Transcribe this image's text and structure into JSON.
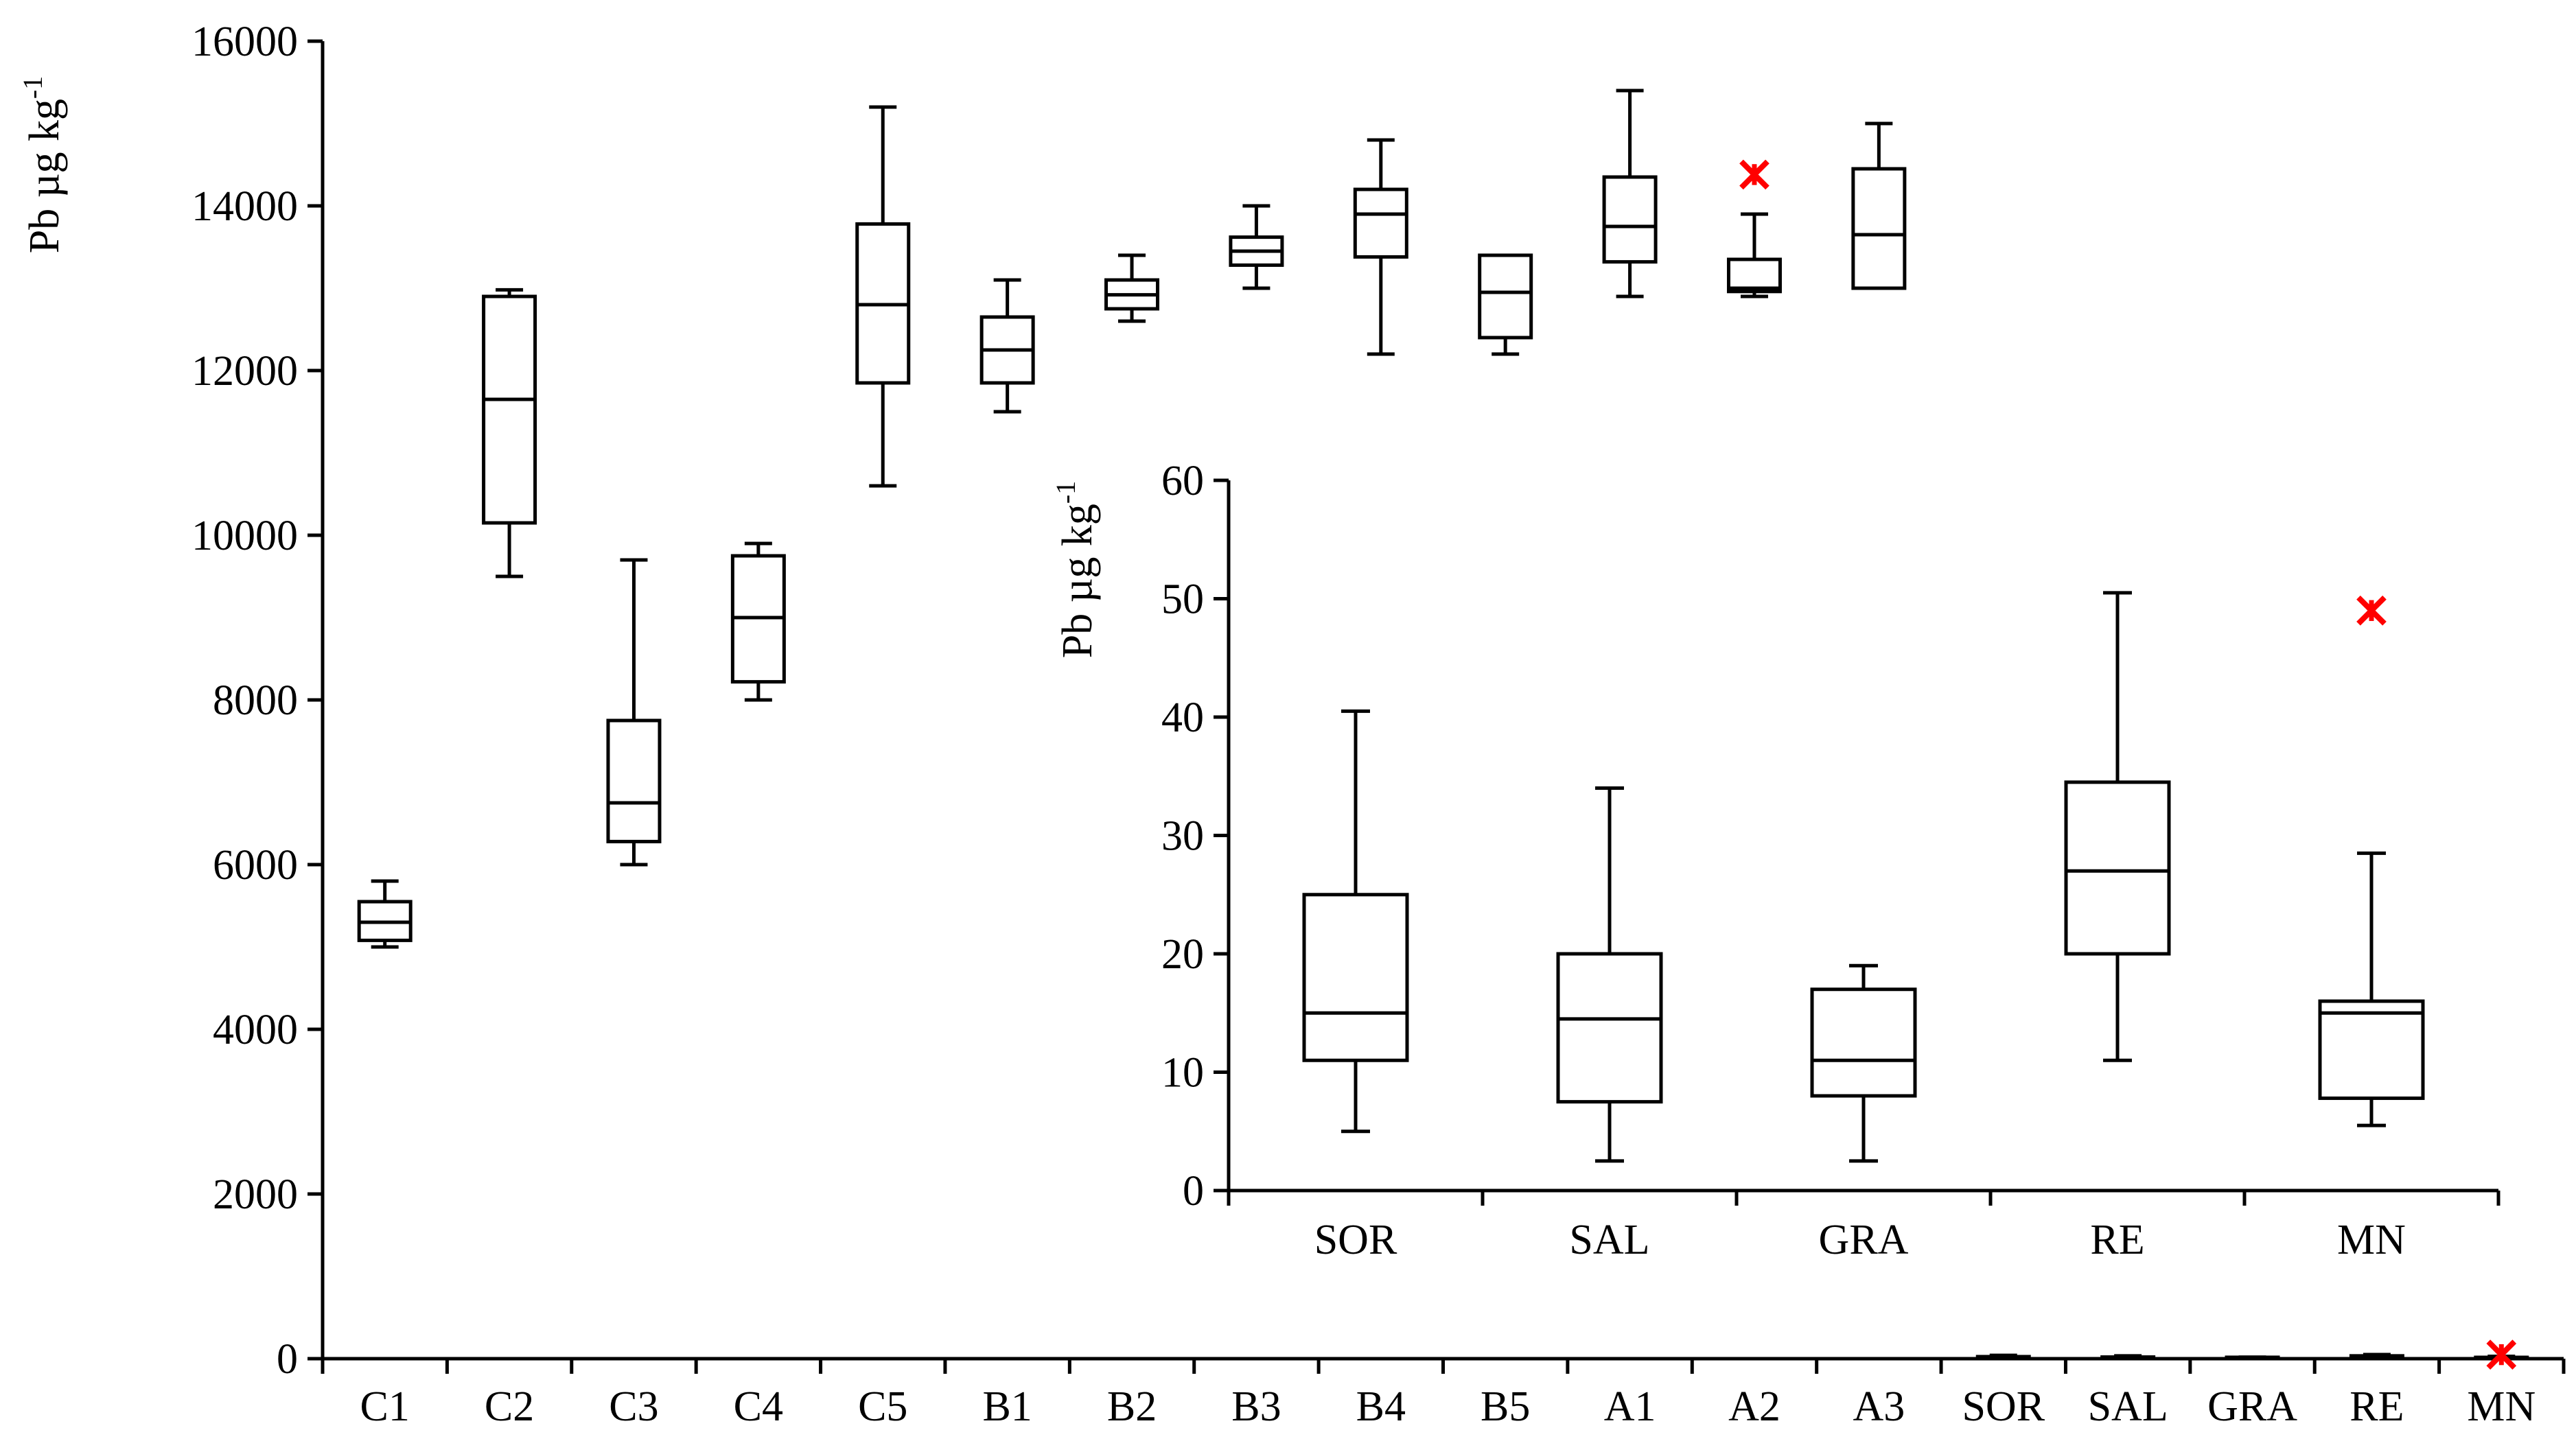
{
  "chart_data": [
    {
      "type": "box",
      "title": "",
      "ylabel": "Pb  µg kg",
      "ylabel_superscript": "-1",
      "xlabel": "",
      "ylim": [
        0,
        16000
      ],
      "yticks": [
        "0",
        "2000",
        "4000",
        "6000",
        "8000",
        "10000",
        "12000",
        "14000",
        "16000"
      ],
      "categories": [
        "C1",
        "C2",
        "C3",
        "C4",
        "C5",
        "B1",
        "B2",
        "B3",
        "B4",
        "B5",
        "A1",
        "A2",
        "A3",
        "SOR",
        "SAL",
        "GRA",
        "RE",
        "MN"
      ],
      "boxes": [
        {
          "category": "C1",
          "min": 5000,
          "q1": 5080,
          "median": 5300,
          "q3": 5550,
          "max": 5800
        },
        {
          "category": "C2",
          "min": 9500,
          "q1": 10150,
          "median": 11650,
          "q3": 12900,
          "max": 12980
        },
        {
          "category": "C3",
          "min": 6000,
          "q1": 6280,
          "median": 6750,
          "q3": 7750,
          "max": 9700
        },
        {
          "category": "C4",
          "min": 8000,
          "q1": 8220,
          "median": 9000,
          "q3": 9750,
          "max": 9900
        },
        {
          "category": "C5",
          "min": 10600,
          "q1": 11850,
          "median": 12800,
          "q3": 13780,
          "max": 15200
        },
        {
          "category": "B1",
          "min": 11500,
          "q1": 11850,
          "median": 12250,
          "q3": 12650,
          "max": 13100
        },
        {
          "category": "B2",
          "min": 12600,
          "q1": 12750,
          "median": 12920,
          "q3": 13100,
          "max": 13400
        },
        {
          "category": "B3",
          "min": 13000,
          "q1": 13280,
          "median": 13450,
          "q3": 13620,
          "max": 14000
        },
        {
          "category": "B4",
          "min": 12200,
          "q1": 13380,
          "median": 13900,
          "q3": 14200,
          "max": 14800
        },
        {
          "category": "B5",
          "min": 12200,
          "q1": 12400,
          "median": 12950,
          "q3": 13400,
          "max": 13400
        },
        {
          "category": "A1",
          "min": 12900,
          "q1": 13320,
          "median": 13750,
          "q3": 14350,
          "max": 15400
        },
        {
          "category": "A2",
          "min": 12900,
          "q1": 12960,
          "median": 13000,
          "q3": 13350,
          "max": 13900
        },
        {
          "category": "A3",
          "min": 13000,
          "q1": 13000,
          "median": 13650,
          "q3": 14450,
          "max": 15000
        },
        {
          "category": "SOR",
          "min": 5,
          "q1": 11,
          "median": 15,
          "q3": 25,
          "max": 40.5
        },
        {
          "category": "SAL",
          "min": 2.5,
          "q1": 7.5,
          "median": 14.5,
          "q3": 20,
          "max": 34
        },
        {
          "category": "GRA",
          "min": 2.5,
          "q1": 8,
          "median": 11,
          "q3": 17,
          "max": 19
        },
        {
          "category": "RE",
          "min": 11,
          "q1": 20,
          "median": 27,
          "q3": 34.5,
          "max": 50.5
        },
        {
          "category": "MN",
          "min": 5.5,
          "q1": 7.8,
          "median": 15,
          "q3": 16,
          "max": 28.5
        }
      ],
      "outliers": [
        {
          "category": "A2",
          "value": 14380
        },
        {
          "category": "MN",
          "value": 49
        }
      ],
      "outlier_color": "#ff0000",
      "line_color": "#000000"
    },
    {
      "type": "box",
      "title": "",
      "ylabel": "Pb  µg kg",
      "ylabel_superscript": "-1",
      "xlabel": "",
      "ylim": [
        0,
        60
      ],
      "yticks": [
        "0",
        "10",
        "20",
        "30",
        "40",
        "50",
        "60"
      ],
      "categories": [
        "SOR",
        "SAL",
        "GRA",
        "RE",
        "MN"
      ],
      "boxes": [
        {
          "category": "SOR",
          "min": 5,
          "q1": 11,
          "median": 15,
          "q3": 25,
          "max": 40.5
        },
        {
          "category": "SAL",
          "min": 2.5,
          "q1": 7.5,
          "median": 14.5,
          "q3": 20,
          "max": 34
        },
        {
          "category": "GRA",
          "min": 2.5,
          "q1": 8,
          "median": 11,
          "q3": 17,
          "max": 19
        },
        {
          "category": "RE",
          "min": 11,
          "q1": 20,
          "median": 27,
          "q3": 34.5,
          "max": 50.5
        },
        {
          "category": "MN",
          "min": 5.5,
          "q1": 7.8,
          "median": 15,
          "q3": 16,
          "max": 28.5
        }
      ],
      "outliers": [
        {
          "category": "MN",
          "value": 49
        }
      ],
      "outlier_color": "#ff0000",
      "line_color": "#000000"
    }
  ]
}
